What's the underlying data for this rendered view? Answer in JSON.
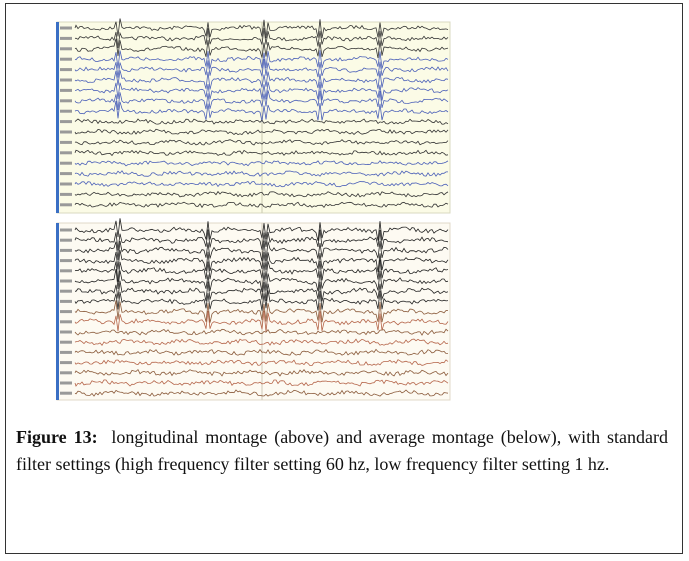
{
  "figure": {
    "label": "Figure 13:",
    "caption": "longitudinal montage (above) and average montage (below), with standard filter settings (high frequency filter setting 60 hz, low frequency filter setting 1 hz."
  }
}
